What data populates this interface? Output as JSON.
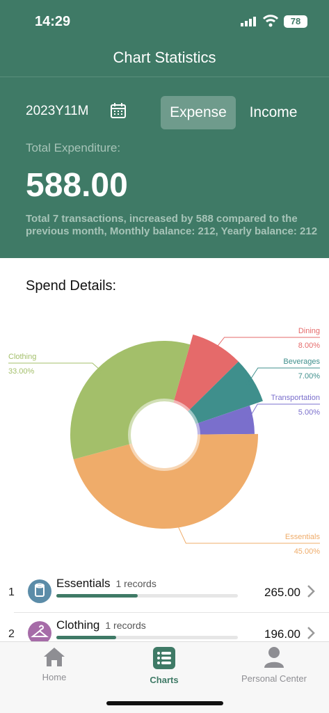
{
  "status_bar": {
    "time": "14:29",
    "battery": "78"
  },
  "header": {
    "title": "Chart Statistics"
  },
  "summary": {
    "month": "2023Y11M",
    "tabs": {
      "expense": "Expense",
      "income": "Income"
    },
    "selected_tab": "Expense",
    "total_label": "Total Expenditure:",
    "total_amount": "588.00",
    "description": "Total 7 transactions, increased by 588 compared to the previous month, Monthly balance: 212,  Yearly balance: 212"
  },
  "spend_details": {
    "title": "Spend Details:"
  },
  "chart_data": {
    "type": "pie",
    "slices": [
      {
        "label": "Dining",
        "value": 8.0,
        "display": "8.00%",
        "color": "#e56a6a"
      },
      {
        "label": "Beverages",
        "value": 7.0,
        "display": "7.00%",
        "color": "#3f8f8c"
      },
      {
        "label": "Transportation",
        "value": 5.0,
        "display": "5.00%",
        "color": "#7a6fcc"
      },
      {
        "label": "Essentials",
        "value": 45.0,
        "display": "45.00%",
        "color": "#efac6a"
      },
      {
        "label": "Clothing",
        "value": 33.0,
        "display": "33.00%",
        "color": "#a3bf6a"
      }
    ]
  },
  "categories": [
    {
      "rank": "1",
      "name": "Essentials",
      "records": "1 records",
      "amount": "265.00",
      "progress": 0.45,
      "icon": "toilet-paper-icon",
      "icon_color": "#5b8ca8"
    },
    {
      "rank": "2",
      "name": "Clothing",
      "records": "1 records",
      "amount": "196.00",
      "progress": 0.33,
      "icon": "hanger-icon",
      "icon_color": "#a66ca8"
    }
  ],
  "tab_bar": {
    "items": [
      {
        "label": "Home",
        "icon": "home-icon",
        "active": false
      },
      {
        "label": "Charts",
        "icon": "list-icon",
        "active": true
      },
      {
        "label": "Personal Center",
        "icon": "person-icon",
        "active": false
      }
    ],
    "active_color": "#3f7a66",
    "inactive_color": "#8e8e93"
  }
}
